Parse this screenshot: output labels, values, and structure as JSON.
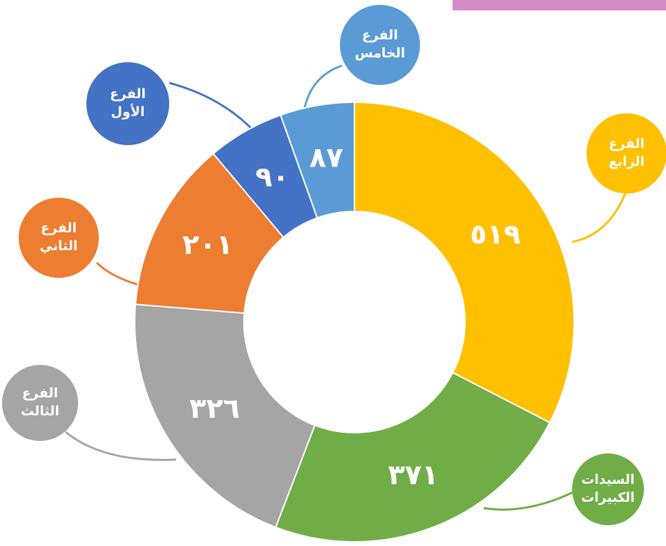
{
  "chart_data": {
    "type": "donut",
    "categories": [
      "الفرع الرابع",
      "السيدات الكبيرات",
      "الفرع الثالث",
      "الفرع الثاني",
      "الفرع الأول",
      "الفرع الخامس"
    ],
    "values": [
      519,
      371,
      326,
      201,
      90,
      87
    ],
    "value_labels": [
      "٥١٩",
      "٣٧١",
      "٣٢٦",
      "٢٠١",
      "٩٠",
      "٨٧"
    ],
    "colors": [
      "#ffc000",
      "#70ad47",
      "#a5a5a5",
      "#ed7d31",
      "#4472c4",
      "#5b9bd5"
    ]
  }
}
